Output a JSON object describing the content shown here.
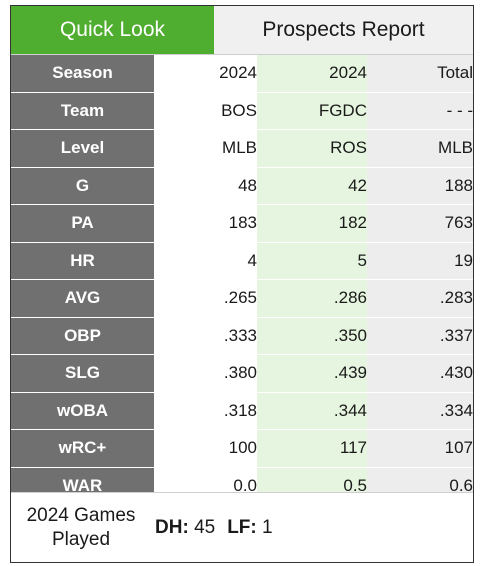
{
  "tabs": {
    "quick_look": "Quick Look",
    "prospects_report": "Prospects Report"
  },
  "rows": [
    {
      "label": "Season",
      "values": [
        "2024",
        "2024",
        "Total"
      ]
    },
    {
      "label": "Team",
      "values": [
        "BOS",
        "FGDC",
        "- - -"
      ]
    },
    {
      "label": "Level",
      "values": [
        "MLB",
        "ROS",
        "MLB"
      ]
    },
    {
      "label": "G",
      "values": [
        "48",
        "42",
        "188"
      ]
    },
    {
      "label": "PA",
      "values": [
        "183",
        "182",
        "763"
      ]
    },
    {
      "label": "HR",
      "values": [
        "4",
        "5",
        "19"
      ]
    },
    {
      "label": "AVG",
      "values": [
        ".265",
        ".286",
        ".283"
      ]
    },
    {
      "label": "OBP",
      "values": [
        ".333",
        ".350",
        ".337"
      ]
    },
    {
      "label": "SLG",
      "values": [
        ".380",
        ".439",
        ".430"
      ]
    },
    {
      "label": "wOBA",
      "values": [
        ".318",
        ".344",
        ".334"
      ]
    },
    {
      "label": "wRC+",
      "values": [
        "100",
        "117",
        "107"
      ]
    },
    {
      "label": "WAR",
      "values": [
        "0.0",
        "0.5",
        "0.6"
      ]
    }
  ],
  "footer": {
    "games_played_label": "2024 Games Played",
    "positions": [
      {
        "pos": "DH:",
        "games": "45"
      },
      {
        "pos": "LF:",
        "games": "1"
      }
    ]
  },
  "colors": {
    "active_tab": "#4fae2f",
    "label_column": "#707070",
    "projection_column": "#e6f5df",
    "total_column": "#ededed"
  }
}
